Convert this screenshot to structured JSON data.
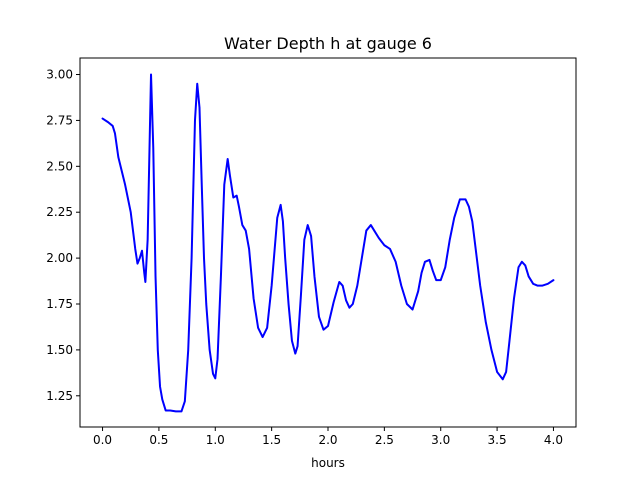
{
  "chart_data": {
    "type": "line",
    "title": "Water Depth h at gauge 6",
    "xlabel": "hours",
    "ylabel": "",
    "xlim": [
      -0.2,
      4.2
    ],
    "ylim": [
      1.08,
      3.09
    ],
    "xticks": [
      0.0,
      0.5,
      1.0,
      1.5,
      2.0,
      2.5,
      3.0,
      3.5,
      4.0
    ],
    "xtick_labels": [
      "0.0",
      "0.5",
      "1.0",
      "1.5",
      "2.0",
      "2.5",
      "3.0",
      "3.5",
      "4.0"
    ],
    "yticks": [
      1.25,
      1.5,
      1.75,
      2.0,
      2.25,
      2.5,
      2.75,
      3.0
    ],
    "ytick_labels": [
      "1.25",
      "1.50",
      "1.75",
      "2.00",
      "2.25",
      "2.50",
      "2.75",
      "3.00"
    ],
    "grid": false,
    "line_color": "#0000ff",
    "series": [
      {
        "name": "",
        "x": [
          0.0,
          0.05,
          0.09,
          0.11,
          0.14,
          0.2,
          0.25,
          0.29,
          0.31,
          0.33,
          0.35,
          0.37,
          0.38,
          0.4,
          0.42,
          0.43,
          0.45,
          0.47,
          0.49,
          0.51,
          0.53,
          0.56,
          0.6,
          0.65,
          0.7,
          0.73,
          0.76,
          0.79,
          0.82,
          0.84,
          0.86,
          0.88,
          0.9,
          0.92,
          0.95,
          0.98,
          1.0,
          1.02,
          1.05,
          1.08,
          1.11,
          1.13,
          1.16,
          1.19,
          1.21,
          1.24,
          1.27,
          1.3,
          1.34,
          1.38,
          1.42,
          1.46,
          1.5,
          1.55,
          1.58,
          1.6,
          1.62,
          1.65,
          1.68,
          1.71,
          1.73,
          1.76,
          1.79,
          1.82,
          1.85,
          1.88,
          1.92,
          1.96,
          2.0,
          2.05,
          2.1,
          2.13,
          2.16,
          2.19,
          2.22,
          2.26,
          2.3,
          2.34,
          2.38,
          2.41,
          2.45,
          2.5,
          2.55,
          2.6,
          2.65,
          2.7,
          2.75,
          2.8,
          2.83,
          2.86,
          2.9,
          2.93,
          2.96,
          3.0,
          3.04,
          3.08,
          3.12,
          3.17,
          3.22,
          3.25,
          3.28,
          3.31,
          3.35,
          3.4,
          3.45,
          3.5,
          3.55,
          3.58,
          3.61,
          3.65,
          3.69,
          3.72,
          3.75,
          3.78,
          3.82,
          3.86,
          3.9,
          3.95,
          4.0
        ],
        "values": [
          2.76,
          2.74,
          2.72,
          2.68,
          2.55,
          2.4,
          2.25,
          2.05,
          1.97,
          2.0,
          2.04,
          1.92,
          1.87,
          2.1,
          2.7,
          3.0,
          2.6,
          1.9,
          1.5,
          1.3,
          1.23,
          1.17,
          1.17,
          1.165,
          1.165,
          1.22,
          1.5,
          2.0,
          2.75,
          2.95,
          2.82,
          2.4,
          2.0,
          1.75,
          1.5,
          1.37,
          1.345,
          1.45,
          1.9,
          2.4,
          2.54,
          2.45,
          2.33,
          2.34,
          2.28,
          2.18,
          2.15,
          2.05,
          1.78,
          1.62,
          1.57,
          1.62,
          1.85,
          2.22,
          2.29,
          2.2,
          2.0,
          1.75,
          1.55,
          1.48,
          1.52,
          1.8,
          2.1,
          2.18,
          2.12,
          1.9,
          1.68,
          1.61,
          1.63,
          1.76,
          1.87,
          1.85,
          1.77,
          1.73,
          1.75,
          1.85,
          2.0,
          2.15,
          2.18,
          2.15,
          2.11,
          2.07,
          2.05,
          1.98,
          1.85,
          1.75,
          1.72,
          1.82,
          1.92,
          1.98,
          1.99,
          1.93,
          1.88,
          1.88,
          1.95,
          2.1,
          2.22,
          2.32,
          2.32,
          2.28,
          2.2,
          2.05,
          1.85,
          1.65,
          1.5,
          1.38,
          1.34,
          1.38,
          1.55,
          1.78,
          1.95,
          1.98,
          1.96,
          1.9,
          1.86,
          1.85,
          1.85,
          1.86,
          1.88
        ]
      }
    ]
  }
}
